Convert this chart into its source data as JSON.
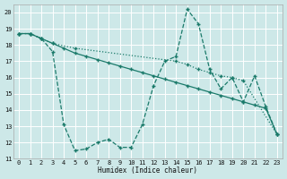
{
  "xlabel": "Humidex (Indice chaleur)",
  "bg_color": "#cde8e8",
  "grid_color": "#ffffff",
  "line_color": "#1a7a6a",
  "xlim": [
    -0.5,
    23.5
  ],
  "ylim": [
    11,
    20.5
  ],
  "xticks": [
    0,
    1,
    2,
    3,
    4,
    5,
    6,
    7,
    8,
    9,
    10,
    11,
    12,
    13,
    14,
    15,
    16,
    17,
    18,
    19,
    20,
    21,
    22,
    23
  ],
  "yticks": [
    11,
    12,
    13,
    14,
    15,
    16,
    17,
    18,
    19,
    20
  ],
  "line1_x": [
    0,
    1,
    2,
    3,
    4,
    5,
    6,
    7,
    8,
    9,
    10,
    11,
    12,
    13,
    14,
    15,
    16,
    17,
    18,
    19,
    20,
    21,
    22,
    23
  ],
  "line1_y": [
    18.7,
    18.7,
    18.4,
    18.1,
    17.8,
    17.5,
    17.3,
    17.1,
    16.9,
    16.7,
    16.5,
    16.3,
    16.1,
    15.9,
    15.7,
    15.5,
    15.3,
    15.1,
    14.9,
    14.7,
    14.5,
    14.3,
    14.1,
    12.5
  ],
  "line2_x": [
    0,
    1,
    2,
    3,
    4,
    5,
    6,
    7,
    8,
    9,
    10,
    11,
    12,
    13,
    14,
    15,
    16,
    17,
    18,
    19,
    20,
    21,
    22,
    23
  ],
  "line2_y": [
    18.7,
    18.7,
    18.4,
    17.6,
    13.1,
    11.5,
    11.6,
    12.0,
    12.2,
    11.7,
    11.7,
    13.1,
    15.5,
    17.0,
    17.3,
    20.2,
    19.3,
    16.5,
    15.3,
    16.0,
    14.5,
    16.1,
    14.2,
    12.5
  ],
  "line3_x": [
    0,
    1,
    2,
    3,
    5,
    14,
    15,
    16,
    17,
    18,
    19,
    20,
    23
  ],
  "line3_y": [
    18.7,
    18.7,
    18.4,
    18.1,
    17.8,
    17.0,
    16.8,
    16.5,
    16.3,
    16.1,
    16.0,
    15.8,
    12.5
  ]
}
